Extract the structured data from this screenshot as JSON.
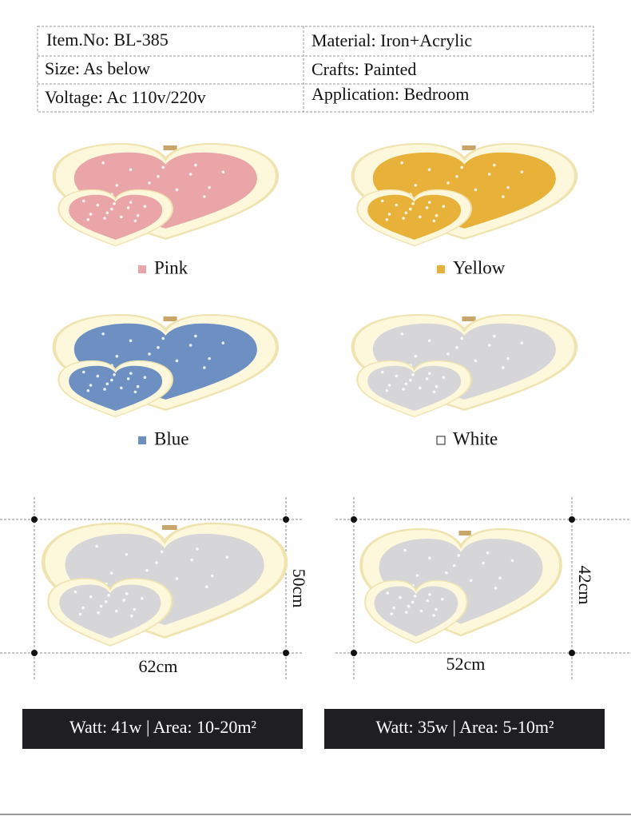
{
  "specs": {
    "rows": [
      [
        "Item.No: BL-385",
        "Material: Iron+Acrylic"
      ],
      [
        "Size: As below",
        "Crafts: Painted"
      ],
      [
        "Voltage: Ac 110v/220v",
        "Application: Bedroom"
      ]
    ]
  },
  "colors": [
    {
      "label": "Pink",
      "color": "#eaa5a8"
    },
    {
      "label": "Yellow",
      "color": "#e8b13a"
    },
    {
      "label": "Blue",
      "color": "#6d8fc2"
    },
    {
      "label": "White",
      "color": "#d6d6d8"
    }
  ],
  "sizes": [
    {
      "width": "62cm",
      "height": "50cm",
      "spec": "Watt: 41w | Area: 10-20m²"
    },
    {
      "width": "52cm",
      "height": "42cm",
      "spec": "Watt: 35w | Area: 5-10m²"
    }
  ]
}
